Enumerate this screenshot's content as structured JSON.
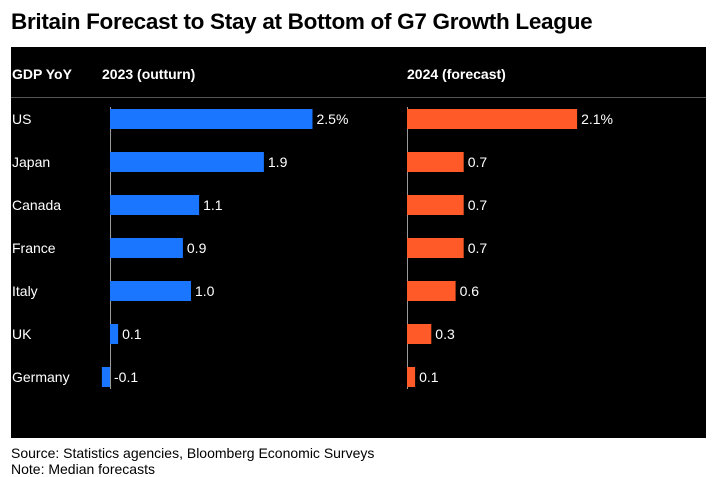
{
  "title": "Britain Forecast to Stay at Bottom of G7 Growth League",
  "header": {
    "category_label": "GDP YoY",
    "col_2023": "2023 (outturn)",
    "col_2024": "2024 (forecast)"
  },
  "footer": {
    "source": "Source: Statistics agencies, Bloomberg Economic Surveys",
    "note": "Note: Median forecasts"
  },
  "colors": {
    "series_2023": "#1a75ff",
    "series_2024": "#ff5a28",
    "panel_bg": "#000000",
    "text": "#ffffff"
  },
  "chart_data": {
    "type": "bar",
    "orientation": "horizontal",
    "categories": [
      "US",
      "Japan",
      "Canada",
      "France",
      "Italy",
      "UK",
      "Germany"
    ],
    "series": [
      {
        "name": "2023 (outturn)",
        "values": [
          2.5,
          1.9,
          1.1,
          0.9,
          1.0,
          0.1,
          -0.1
        ],
        "labels": [
          "2.5%",
          "1.9",
          "1.1",
          "0.9",
          "1.0",
          "0.1",
          "-0.1"
        ]
      },
      {
        "name": "2024 (forecast)",
        "values": [
          2.1,
          0.7,
          0.7,
          0.7,
          0.6,
          0.3,
          0.1
        ],
        "labels": [
          "2.1%",
          "0.7",
          "0.7",
          "0.7",
          "0.6",
          "0.3",
          "0.1"
        ]
      }
    ],
    "unit": "%",
    "grid": false
  }
}
